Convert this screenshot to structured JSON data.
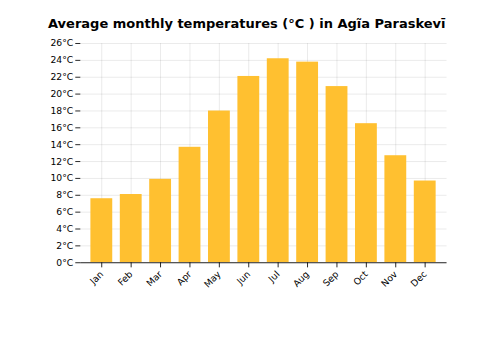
{
  "chart_data": {
    "type": "bar",
    "title": "Average monthly temperatures (°C ) in Agĩa Paraskevī",
    "categories": [
      "Jan",
      "Feb",
      "Mar",
      "Apr",
      "May",
      "Jun",
      "Jul",
      "Aug",
      "Sep",
      "Oct",
      "Nov",
      "Dec"
    ],
    "values": [
      7.6,
      8.1,
      9.9,
      13.7,
      18.0,
      22.1,
      24.2,
      23.8,
      20.9,
      16.5,
      12.7,
      9.7
    ],
    "color": "#FFC030",
    "ylim": [
      0,
      26
    ],
    "yticks": [
      {
        "value": 0,
        "label": "0°C"
      },
      {
        "value": 2,
        "label": "2°C"
      },
      {
        "value": 4,
        "label": "4°C"
      },
      {
        "value": 6,
        "label": "6°C"
      },
      {
        "value": 8,
        "label": "8°C"
      },
      {
        "value": 10,
        "label": "10°C"
      },
      {
        "value": 12,
        "label": "12°C"
      },
      {
        "value": 14,
        "label": "14°C"
      },
      {
        "value": 16,
        "label": "16°C"
      },
      {
        "value": 18,
        "label": "18°C"
      },
      {
        "value": 20,
        "label": "20°C"
      },
      {
        "value": 22,
        "label": "22°C"
      },
      {
        "value": 24,
        "label": "24°C"
      },
      {
        "value": 26,
        "label": "26°C"
      }
    ],
    "grid": true
  }
}
